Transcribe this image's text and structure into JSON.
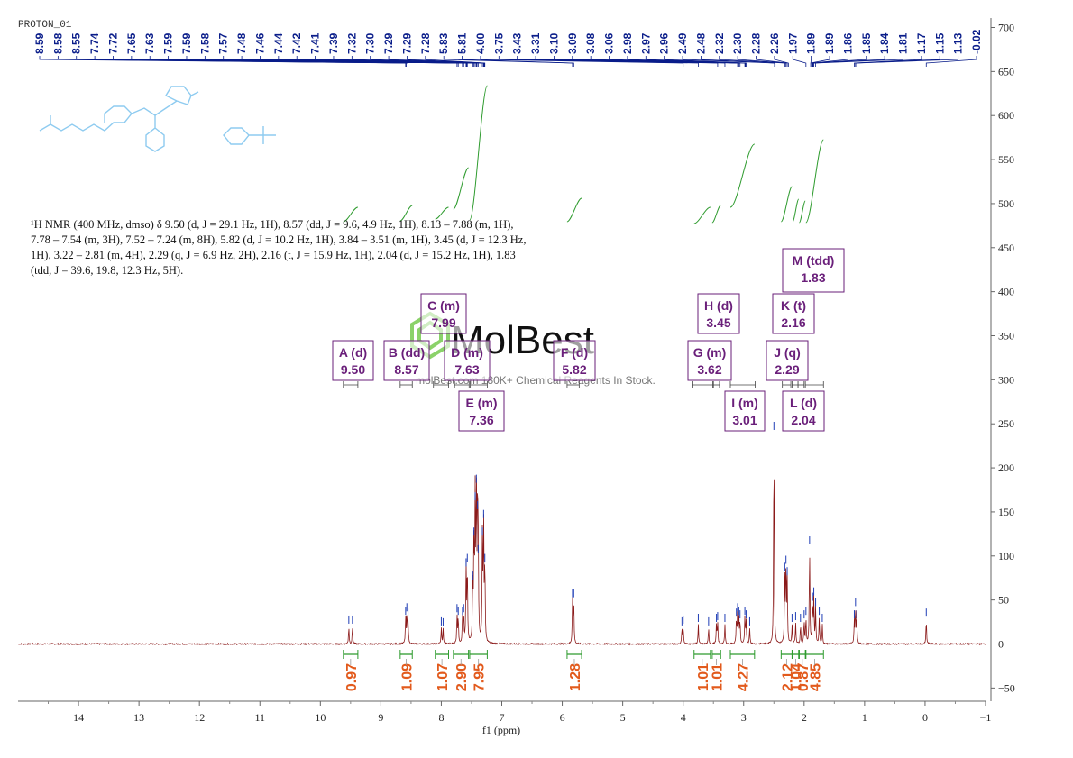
{
  "page_title": "PROTON_01",
  "summary_text": "¹H NMR (400 MHz, dmso) δ 9.50 (d, J = 29.1 Hz, 1H), 8.57 (dd, J = 9.6, 4.9 Hz, 1H), 8.13 – 7.88 (m, 1H), 7.78 – 7.54 (m, 3H), 7.52 – 7.24 (m, 8H), 5.82 (d, J = 10.2 Hz, 1H), 3.84 – 3.51 (m, 1H), 3.45 (d, J = 12.3 Hz, 1H), 3.22 – 2.81 (m, 4H), 2.29 (q, J = 6.9 Hz, 2H), 2.16 (t, J = 15.9 Hz, 1H), 2.04 (d, J = 15.2 Hz, 1H), 1.83 (tdd, J = 39.6, 19.8, 12.3 Hz, 5H).",
  "watermark": {
    "brand": "MolBest",
    "tagline": "molBest.com 180K+ Chemical Reagents In Stock."
  },
  "colors": {
    "spectrum": "#8b1a1a",
    "peak_labels": "#0a1d8a",
    "integral_curve": "#2e9b2e",
    "integral_values": "#e25a1c",
    "multiplet_boxes": "#6a1f7a",
    "structure": "#8ecbf0",
    "watermark_logo": "#8bd26a"
  },
  "chart_data": {
    "type": "line",
    "xlabel": "f1 (ppm)",
    "xlim": [
      15,
      -1
    ],
    "x_reversed": true,
    "ylim": [
      -60,
      710
    ],
    "x_ticks": [
      14,
      13,
      12,
      11,
      10,
      9,
      8,
      7,
      6,
      5,
      4,
      3,
      2,
      1,
      0,
      -1
    ],
    "y_ticks": [
      -50,
      0,
      50,
      100,
      150,
      200,
      250,
      300,
      350,
      400,
      450,
      500,
      550,
      600,
      650,
      700
    ],
    "peak_labels": [
      "8.59",
      "8.58",
      "8.55",
      "7.74",
      "7.72",
      "7.65",
      "7.63",
      "7.59",
      "7.59",
      "7.58",
      "7.57",
      "7.48",
      "7.46",
      "7.44",
      "7.42",
      "7.41",
      "7.39",
      "7.32",
      "7.30",
      "7.29",
      "7.29",
      "7.28",
      "5.83",
      "5.81",
      "4.00",
      "3.75",
      "3.43",
      "3.31",
      "3.10",
      "3.09",
      "3.08",
      "3.06",
      "2.98",
      "2.97",
      "2.96",
      "2.49",
      "2.48",
      "2.32",
      "2.30",
      "2.28",
      "2.26",
      "1.97",
      "1.89",
      "1.89",
      "1.86",
      "1.85",
      "1.84",
      "1.81",
      "1.17",
      "1.15",
      "1.13",
      "-0.02"
    ],
    "peaks": [
      {
        "ppm": 9.53,
        "height": 20
      },
      {
        "ppm": 9.47,
        "height": 20
      },
      {
        "ppm": 8.59,
        "height": 30
      },
      {
        "ppm": 8.57,
        "height": 34
      },
      {
        "ppm": 8.55,
        "height": 28
      },
      {
        "ppm": 8.0,
        "height": 18
      },
      {
        "ppm": 7.97,
        "height": 17
      },
      {
        "ppm": 7.74,
        "height": 33
      },
      {
        "ppm": 7.72,
        "height": 30
      },
      {
        "ppm": 7.65,
        "height": 30
      },
      {
        "ppm": 7.63,
        "height": 33
      },
      {
        "ppm": 7.59,
        "height": 85
      },
      {
        "ppm": 7.57,
        "height": 90
      },
      {
        "ppm": 7.48,
        "height": 70
      },
      {
        "ppm": 7.46,
        "height": 120
      },
      {
        "ppm": 7.44,
        "height": 160
      },
      {
        "ppm": 7.42,
        "height": 180
      },
      {
        "ppm": 7.4,
        "height": 150
      },
      {
        "ppm": 7.39,
        "height": 100
      },
      {
        "ppm": 7.32,
        "height": 120
      },
      {
        "ppm": 7.3,
        "height": 140
      },
      {
        "ppm": 7.28,
        "height": 90
      },
      {
        "ppm": 5.83,
        "height": 50
      },
      {
        "ppm": 5.81,
        "height": 50
      },
      {
        "ppm": 4.02,
        "height": 18
      },
      {
        "ppm": 4.0,
        "height": 20
      },
      {
        "ppm": 3.75,
        "height": 22
      },
      {
        "ppm": 3.58,
        "height": 18
      },
      {
        "ppm": 3.45,
        "height": 22
      },
      {
        "ppm": 3.43,
        "height": 24
      },
      {
        "ppm": 3.31,
        "height": 22
      },
      {
        "ppm": 3.12,
        "height": 28
      },
      {
        "ppm": 3.1,
        "height": 34
      },
      {
        "ppm": 3.08,
        "height": 30
      },
      {
        "ppm": 3.06,
        "height": 26
      },
      {
        "ppm": 2.98,
        "height": 30
      },
      {
        "ppm": 2.96,
        "height": 26
      },
      {
        "ppm": 2.9,
        "height": 18
      },
      {
        "ppm": 2.5,
        "height": 240
      },
      {
        "ppm": 2.32,
        "height": 80
      },
      {
        "ppm": 2.3,
        "height": 88
      },
      {
        "ppm": 2.28,
        "height": 75
      },
      {
        "ppm": 2.2,
        "height": 22
      },
      {
        "ppm": 2.14,
        "height": 24
      },
      {
        "ppm": 2.06,
        "height": 22
      },
      {
        "ppm": 2.0,
        "height": 26
      },
      {
        "ppm": 1.97,
        "height": 30
      },
      {
        "ppm": 1.91,
        "height": 110
      },
      {
        "ppm": 1.86,
        "height": 46
      },
      {
        "ppm": 1.84,
        "height": 52
      },
      {
        "ppm": 1.81,
        "height": 40
      },
      {
        "ppm": 1.75,
        "height": 30
      },
      {
        "ppm": 1.7,
        "height": 22
      },
      {
        "ppm": 1.17,
        "height": 26
      },
      {
        "ppm": 1.15,
        "height": 40
      },
      {
        "ppm": 1.13,
        "height": 26
      },
      {
        "ppm": -0.02,
        "height": 28
      }
    ],
    "integrals": [
      {
        "from": 9.62,
        "to": 9.38,
        "value": "0.97"
      },
      {
        "from": 8.68,
        "to": 8.48,
        "value": "1.09"
      },
      {
        "from": 8.1,
        "to": 7.88,
        "value": "1.07"
      },
      {
        "from": 7.8,
        "to": 7.55,
        "value": "2.90"
      },
      {
        "from": 7.53,
        "to": 7.24,
        "value": "7.95"
      },
      {
        "from": 5.92,
        "to": 5.68,
        "value": "1.28"
      },
      {
        "from": 3.82,
        "to": 3.55,
        "value": "1.01"
      },
      {
        "from": 3.52,
        "to": 3.38,
        "value": "1.01"
      },
      {
        "from": 3.22,
        "to": 2.82,
        "value": "4.27"
      },
      {
        "from": 2.38,
        "to": 2.2,
        "value": "2.12"
      },
      {
        "from": 2.19,
        "to": 2.09,
        "value": "1.04"
      },
      {
        "from": 2.08,
        "to": 1.98,
        "value": "0.87"
      },
      {
        "from": 1.97,
        "to": 1.68,
        "value": "4.85"
      }
    ],
    "multiplets": [
      {
        "label": "A (d)",
        "shift": "9.50"
      },
      {
        "label": "B (dd)",
        "shift": "8.57"
      },
      {
        "label": "C (m)",
        "shift": "7.99"
      },
      {
        "label": "D (m)",
        "shift": "7.63"
      },
      {
        "label": "E (m)",
        "shift": "7.36"
      },
      {
        "label": "F (d)",
        "shift": "5.82"
      },
      {
        "label": "G (m)",
        "shift": "3.62"
      },
      {
        "label": "H (d)",
        "shift": "3.45"
      },
      {
        "label": "I (m)",
        "shift": "3.01"
      },
      {
        "label": "J (q)",
        "shift": "2.29"
      },
      {
        "label": "K (t)",
        "shift": "2.16"
      },
      {
        "label": "L (d)",
        "shift": "2.04"
      },
      {
        "label": "M (tdd)",
        "shift": "1.83"
      }
    ]
  }
}
